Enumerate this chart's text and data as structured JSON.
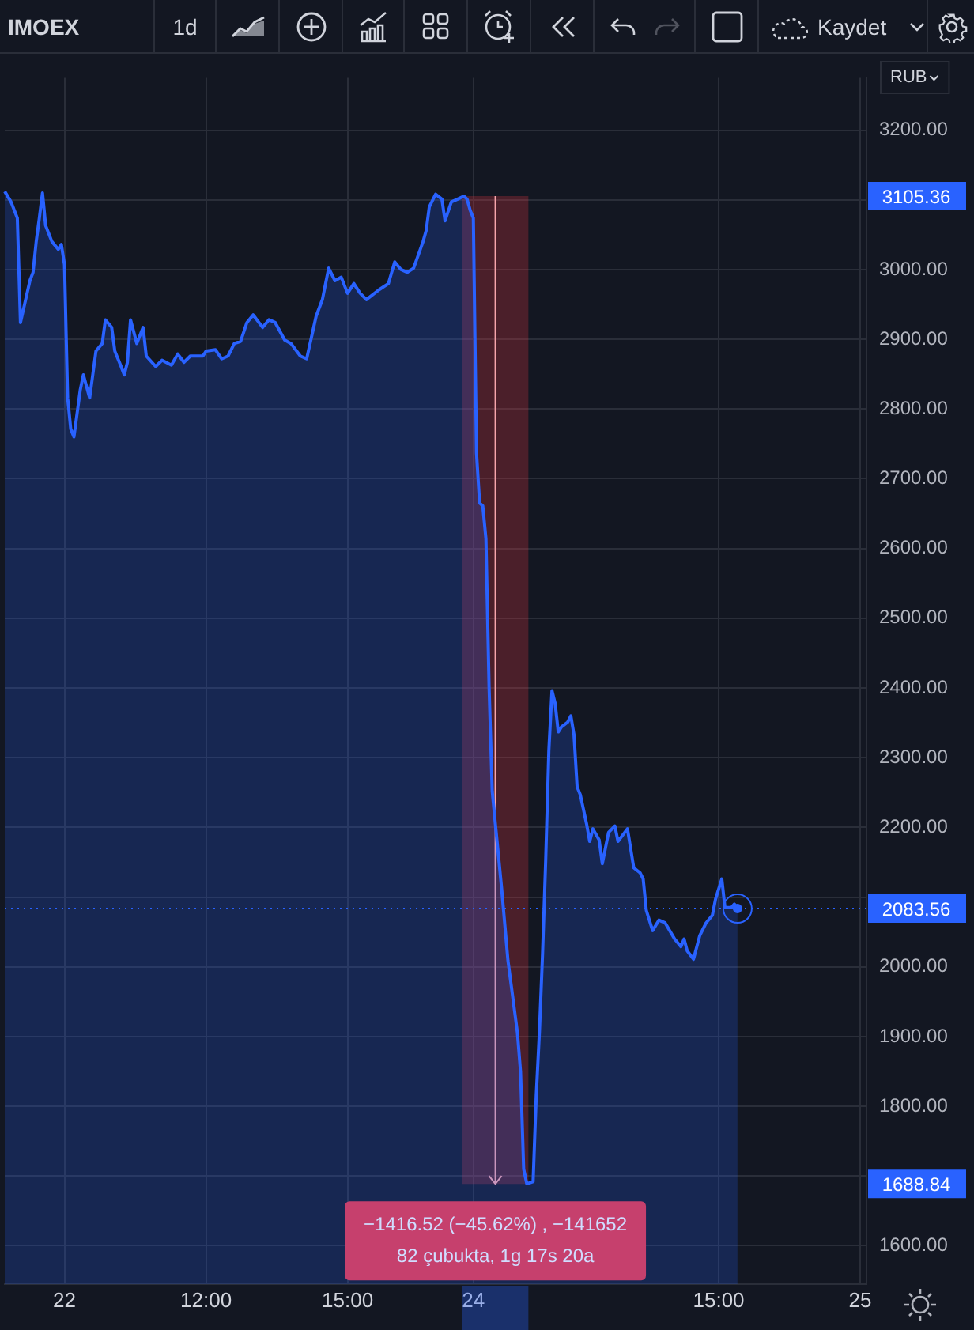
{
  "chart_data": {
    "type": "area",
    "title": "IMOEX",
    "subtitle": "1d",
    "ylabel": "RUB",
    "categories": [
      null,
      null,
      null,
      null,
      null,
      null,
      null,
      null,
      null,
      null,
      null,
      null,
      null,
      null,
      null,
      null,
      null,
      null,
      null,
      "22",
      null,
      null,
      null,
      null,
      null,
      null,
      null,
      null,
      null,
      null,
      null,
      null,
      null,
      null,
      null,
      null,
      null,
      null,
      null,
      null,
      null,
      null,
      null,
      null,
      null,
      null,
      null,
      null,
      null,
      null,
      null,
      null,
      null,
      null,
      null,
      null,
      null,
      null,
      null,
      null,
      null,
      null,
      null,
      null,
      "12:00",
      null,
      null,
      null,
      null,
      null,
      null,
      null,
      null,
      null,
      null,
      null,
      null,
      null,
      null,
      null,
      null,
      null,
      null,
      null,
      null,
      null,
      null,
      null,
      null,
      null,
      null,
      null,
      null,
      null,
      null,
      null,
      null,
      null,
      null,
      null,
      null,
      null,
      null,
      null,
      null,
      null,
      null,
      null,
      null,
      "15:00",
      null,
      null,
      null,
      null,
      null,
      null,
      null,
      null,
      null,
      null,
      null,
      null,
      null,
      null,
      null,
      null,
      null,
      null,
      null,
      null,
      null,
      null,
      null,
      null,
      null,
      null,
      null,
      null,
      null,
      null,
      null,
      null,
      null,
      null,
      null,
      null,
      null,
      null,
      null,
      "24",
      null,
      null,
      null,
      null,
      null,
      null,
      null,
      null,
      null,
      null,
      null,
      null,
      null,
      null,
      null,
      null,
      null,
      null,
      null,
      null,
      null,
      null,
      null,
      null,
      null,
      null,
      null,
      null,
      null,
      null,
      null,
      null,
      null,
      null,
      null,
      null,
      null,
      null,
      null,
      null,
      null,
      null,
      null,
      null,
      null,
      null,
      null,
      null,
      null,
      null,
      null,
      null,
      null,
      null,
      null,
      null,
      null,
      null,
      null,
      null,
      null,
      null,
      null,
      null,
      null,
      null,
      null,
      null,
      null,
      null,
      null,
      null,
      null,
      null,
      null,
      null,
      null,
      "15:00",
      null,
      null,
      null,
      null,
      null,
      null,
      null,
      null,
      null,
      null,
      null,
      null,
      null,
      null,
      null,
      null,
      null,
      null,
      null,
      null,
      null,
      null,
      null,
      null,
      null,
      null,
      null,
      null,
      null,
      null,
      null,
      null,
      null,
      null,
      null,
      null,
      null,
      null,
      null,
      null,
      null,
      null,
      null,
      null,
      "25",
      null,
      null
    ],
    "ylim": [
      1545,
      3275
    ],
    "yticks": [
      {
        "value": 1600,
        "label": "1600.00"
      },
      {
        "value": 1700,
        "label": null
      },
      {
        "value": 1800,
        "label": "1800.00"
      },
      {
        "value": 1900,
        "label": "1900.00"
      },
      {
        "value": 2000,
        "label": "2000.00"
      },
      {
        "value": 2100,
        "label": null
      },
      {
        "value": 2200,
        "label": "2200.00"
      },
      {
        "value": 2300,
        "label": "2300.00"
      },
      {
        "value": 2400,
        "label": "2400.00"
      },
      {
        "value": 2500,
        "label": "2500.00"
      },
      {
        "value": 2600,
        "label": "2600.00"
      },
      {
        "value": 2700,
        "label": "2700.00"
      },
      {
        "value": 2800,
        "label": "2800.00"
      },
      {
        "value": 2900,
        "label": "2900.00"
      },
      {
        "value": 3000,
        "label": "3000.00"
      },
      {
        "value": 3100,
        "label": null
      },
      {
        "value": 3200,
        "label": "3200.00"
      }
    ],
    "grid": true,
    "marker": "none",
    "series": [
      {
        "color": "#2962ff",
        "values": [
          3112,
          null,
          3097,
          null,
          3074,
          2924,
          2944,
          null,
          2984,
          2996,
          3040,
          3074,
          3110,
          3063,
          null,
          3040,
          null,
          3029,
          3036,
          3007,
          2816,
          2771,
          2760,
          null,
          2827,
          2849,
          null,
          2816,
          null,
          2883,
          null,
          2894,
          2928,
          null,
          2917,
          2883,
          null,
          2861,
          2849,
          2867,
          2928,
          null,
          2894,
          null,
          2917,
          2876,
          null,
          null,
          2861,
          null,
          2870,
          null,
          null,
          2863,
          null,
          2879,
          null,
          2867,
          null,
          2876,
          null,
          null,
          null,
          2876,
          2883,
          null,
          null,
          2885,
          null,
          2872,
          null,
          2876,
          null,
          2894,
          null,
          2897,
          null,
          2924,
          null,
          2935,
          null,
          null,
          2917,
          null,
          2928,
          null,
          2924,
          null,
          null,
          2899,
          null,
          2894,
          null,
          null,
          2876,
          null,
          2872,
          null,
          null,
          2933,
          null,
          2957,
          null,
          3002,
          null,
          2984,
          null,
          2989,
          null,
          2966,
          null,
          2980,
          null,
          2966,
          null,
          2957,
          null,
          null,
          null,
          2971,
          null,
          null,
          2980,
          null,
          3011,
          null,
          3000,
          null,
          2996,
          null,
          3002,
          null,
          null,
          3040,
          3056,
          3090,
          null,
          3108,
          null,
          3101,
          3070,
          null,
          3097,
          null,
          3101,
          null,
          3105.36,
          3101,
          3085,
          3074,
          2737,
          2665,
          2661,
          2614,
          2402,
          2252,
          2205,
          null,
          2112,
          null,
          2009,
          null,
          null,
          1906,
          1850,
          1710,
          1688.84,
          null,
          1692,
          1816,
          1906,
          2018,
          2153,
          2310,
          2396,
          2378,
          2337,
          2344,
          null,
          2351,
          2360,
          2333,
          2258,
          2247,
          null,
          2205,
          2180,
          2198,
          null,
          2182,
          2148,
          null,
          2193,
          null,
          2202,
          2180,
          null,
          null,
          2198,
          null,
          2142,
          null,
          2135,
          2126,
          2081,
          null,
          2052,
          null,
          2067,
          null,
          2063,
          null,
          null,
          2040,
          null,
          2029,
          2040,
          2023,
          null,
          2011,
          null,
          2045,
          null,
          2063,
          null,
          2074,
          2097,
          null,
          2126,
          2085,
          null,
          2085,
          2090,
          2083.56,
          null,
          null,
          null,
          null,
          null,
          null,
          null,
          null,
          null,
          null,
          null,
          null,
          null,
          null,
          null,
          null,
          null,
          null,
          null,
          null,
          null,
          null,
          null,
          null,
          null,
          null,
          null,
          null,
          null,
          null,
          null,
          null,
          null,
          null,
          null,
          null,
          null,
          null,
          null,
          null,
          null
        ]
      }
    ],
    "ref_lines": [
      {
        "axis": "y",
        "value": 2083.56,
        "label": "2083.56",
        "color": "#2962ff",
        "line_style": "dotted"
      }
    ],
    "bands": [
      {
        "axis": "y",
        "from": 1688.84,
        "to": 3105.36,
        "color": "#f23645"
      }
    ],
    "annotations": [
      "−1416.52 (−45.62%) , −141652",
      "82 çubukta, 1g 17s 20a",
      "Kaydet",
      "3105.36",
      "1688.84"
    ]
  }
}
